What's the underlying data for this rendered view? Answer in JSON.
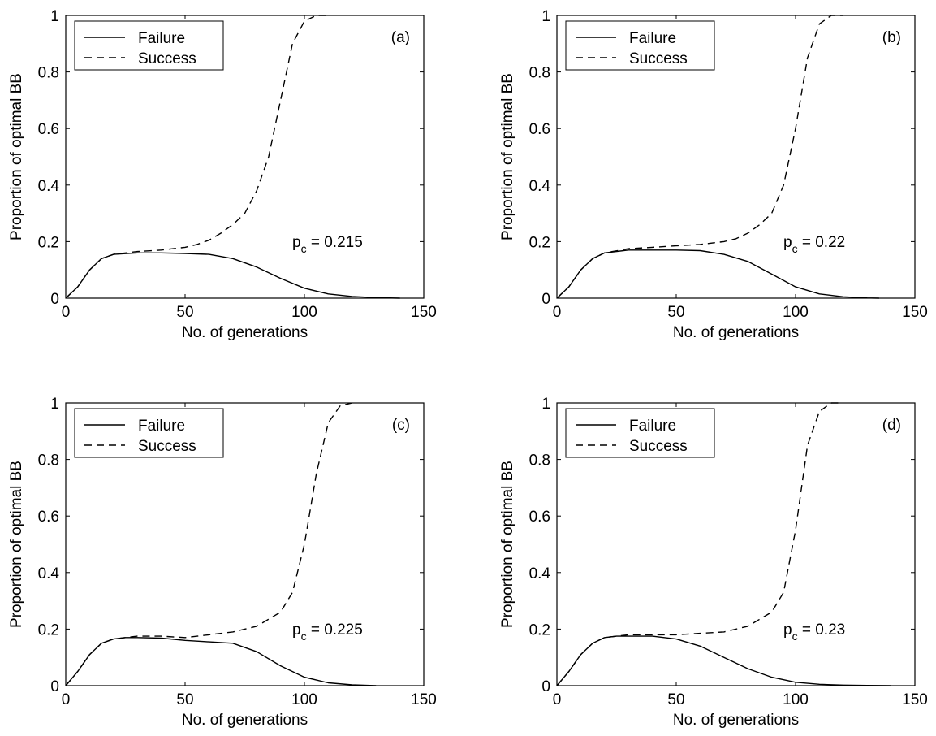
{
  "chart_data": [
    {
      "type": "line",
      "panel_label": "(a)",
      "annotation": {
        "base": "p",
        "sub": "c",
        "text": " = 0.215"
      },
      "xlabel": "No. of generations",
      "ylabel": "Proportion of optimal BB",
      "xlim": [
        0,
        150
      ],
      "ylim": [
        0,
        1
      ],
      "xticks": [
        "0",
        "50",
        "100",
        "150"
      ],
      "yticks": [
        "0",
        "0.2",
        "0.4",
        "0.6",
        "0.8",
        "1"
      ],
      "legend_position": "top-left",
      "series": [
        {
          "name": "Failure",
          "style": "solid",
          "x": [
            0,
            5,
            10,
            15,
            20,
            30,
            40,
            50,
            60,
            70,
            80,
            90,
            100,
            110,
            120,
            130,
            140
          ],
          "y": [
            0,
            0.04,
            0.1,
            0.14,
            0.155,
            0.16,
            0.16,
            0.158,
            0.155,
            0.14,
            0.11,
            0.07,
            0.035,
            0.015,
            0.006,
            0.002,
            0
          ]
        },
        {
          "name": "Success",
          "style": "dashed",
          "x": [
            0,
            5,
            10,
            15,
            20,
            30,
            40,
            50,
            55,
            60,
            65,
            70,
            75,
            80,
            85,
            90,
            95,
            100,
            105,
            110
          ],
          "y": [
            0,
            0.04,
            0.1,
            0.14,
            0.155,
            0.165,
            0.17,
            0.18,
            0.19,
            0.205,
            0.23,
            0.26,
            0.3,
            0.38,
            0.5,
            0.7,
            0.9,
            0.98,
            1.0,
            1.0
          ]
        }
      ]
    },
    {
      "type": "line",
      "panel_label": "(b)",
      "annotation": {
        "base": "p",
        "sub": "c",
        "text": " = 0.22"
      },
      "xlabel": "No. of generations",
      "ylabel": "Proportion of optimal BB",
      "xlim": [
        0,
        150
      ],
      "ylim": [
        0,
        1
      ],
      "xticks": [
        "0",
        "50",
        "100",
        "150"
      ],
      "yticks": [
        "0",
        "0.2",
        "0.4",
        "0.6",
        "0.8",
        "1"
      ],
      "legend_position": "top-left",
      "series": [
        {
          "name": "Failure",
          "style": "solid",
          "x": [
            0,
            5,
            10,
            15,
            20,
            30,
            40,
            50,
            60,
            70,
            80,
            90,
            100,
            110,
            120,
            130,
            135
          ],
          "y": [
            0,
            0.04,
            0.1,
            0.14,
            0.16,
            0.17,
            0.17,
            0.17,
            0.168,
            0.155,
            0.13,
            0.085,
            0.04,
            0.015,
            0.005,
            0.001,
            0
          ]
        },
        {
          "name": "Success",
          "style": "dashed",
          "x": [
            0,
            5,
            10,
            15,
            20,
            30,
            40,
            50,
            60,
            70,
            75,
            80,
            85,
            90,
            95,
            100,
            105,
            110,
            115,
            120
          ],
          "y": [
            0,
            0.04,
            0.1,
            0.14,
            0.16,
            0.175,
            0.18,
            0.185,
            0.19,
            0.2,
            0.21,
            0.23,
            0.26,
            0.3,
            0.4,
            0.6,
            0.85,
            0.97,
            1.0,
            1.0
          ]
        }
      ]
    },
    {
      "type": "line",
      "panel_label": "(c)",
      "annotation": {
        "base": "p",
        "sub": "c",
        "text": " = 0.225"
      },
      "xlabel": "No. of generations",
      "ylabel": "Proportion of optimal BB",
      "xlim": [
        0,
        150
      ],
      "ylim": [
        0,
        1
      ],
      "xticks": [
        "0",
        "50",
        "100",
        "150"
      ],
      "yticks": [
        "0",
        "0.2",
        "0.4",
        "0.6",
        "0.8",
        "1"
      ],
      "legend_position": "top-left",
      "series": [
        {
          "name": "Failure",
          "style": "solid",
          "x": [
            0,
            5,
            10,
            15,
            20,
            25,
            30,
            40,
            50,
            60,
            70,
            80,
            90,
            100,
            110,
            120,
            130
          ],
          "y": [
            0,
            0.05,
            0.11,
            0.15,
            0.165,
            0.17,
            0.17,
            0.168,
            0.16,
            0.155,
            0.15,
            0.12,
            0.07,
            0.03,
            0.01,
            0.003,
            0
          ]
        },
        {
          "name": "Success",
          "style": "dashed",
          "x": [
            0,
            5,
            10,
            15,
            20,
            25,
            30,
            40,
            50,
            60,
            70,
            80,
            90,
            95,
            100,
            105,
            110,
            115,
            120
          ],
          "y": [
            0,
            0.05,
            0.11,
            0.15,
            0.165,
            0.17,
            0.175,
            0.175,
            0.17,
            0.18,
            0.19,
            0.21,
            0.26,
            0.33,
            0.5,
            0.75,
            0.93,
            0.99,
            1.0
          ]
        }
      ]
    },
    {
      "type": "line",
      "panel_label": "(d)",
      "annotation": {
        "base": "p",
        "sub": "c",
        "text": " = 0.23"
      },
      "xlabel": "No. of generations",
      "ylabel": "Proportion of optimal BB",
      "xlim": [
        0,
        150
      ],
      "ylim": [
        0,
        1
      ],
      "xticks": [
        "0",
        "50",
        "100",
        "150"
      ],
      "yticks": [
        "0",
        "0.2",
        "0.4",
        "0.6",
        "0.8",
        "1"
      ],
      "legend_position": "top-left",
      "series": [
        {
          "name": "Failure",
          "style": "solid",
          "x": [
            0,
            5,
            10,
            15,
            20,
            25,
            30,
            40,
            50,
            60,
            70,
            80,
            90,
            100,
            110,
            120,
            130,
            140
          ],
          "y": [
            0,
            0.05,
            0.11,
            0.15,
            0.17,
            0.175,
            0.175,
            0.175,
            0.165,
            0.14,
            0.1,
            0.06,
            0.03,
            0.012,
            0.005,
            0.002,
            0.001,
            0
          ]
        },
        {
          "name": "Success",
          "style": "dashed",
          "x": [
            0,
            5,
            10,
            15,
            20,
            25,
            30,
            40,
            50,
            60,
            70,
            80,
            90,
            95,
            100,
            105,
            110,
            115,
            120
          ],
          "y": [
            0,
            0.05,
            0.11,
            0.15,
            0.17,
            0.175,
            0.18,
            0.18,
            0.18,
            0.185,
            0.19,
            0.21,
            0.26,
            0.33,
            0.55,
            0.85,
            0.97,
            1.0,
            1.0
          ]
        }
      ]
    }
  ]
}
